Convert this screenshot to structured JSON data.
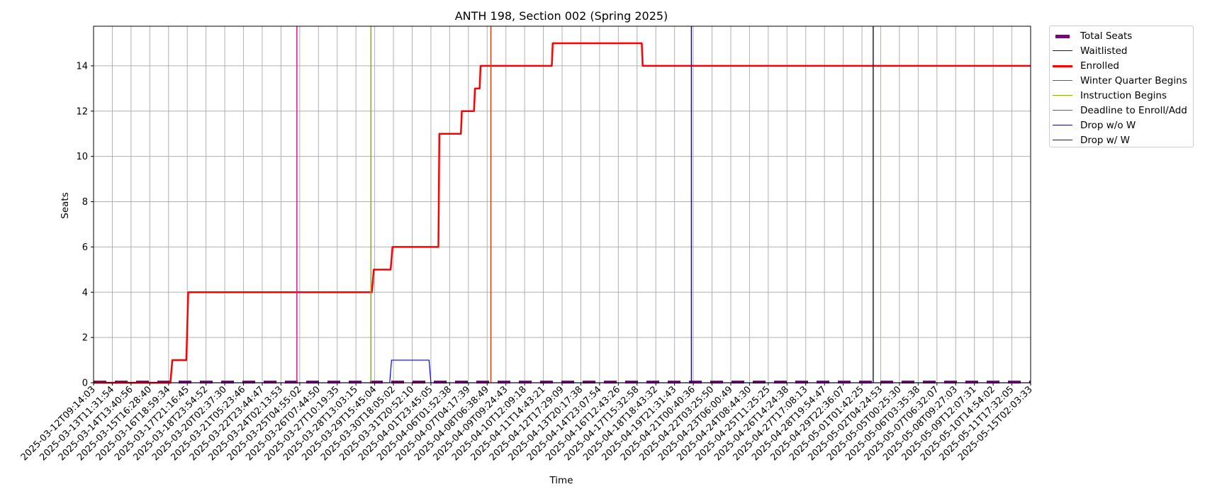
{
  "chart_data": {
    "type": "line",
    "title": "ANTH 198, Section 002 (Spring 2025)",
    "xlabel": "Time",
    "ylabel": "Seats",
    "ylim": [
      0,
      15.75
    ],
    "yticks": [
      0,
      2,
      4,
      6,
      8,
      10,
      12,
      14
    ],
    "grid": true,
    "legend_placement": "outside-top-right",
    "x_tick_labels": [
      "2025-03-12T09:14:03",
      "2025-03-13T11:31:54",
      "2025-03-14T13:40:56",
      "2025-03-15T16:28:40",
      "2025-03-16T18:59:34",
      "2025-03-17T21:16:45",
      "2025-03-18T23:54:52",
      "2025-03-20T02:37:30",
      "2025-03-21T05:23:46",
      "2025-03-22T23:44:47",
      "2025-03-24T02:13:53",
      "2025-03-25T04:55:02",
      "2025-03-26T07:44:50",
      "2025-03-27T10:19:35",
      "2025-03-28T13:03:15",
      "2025-03-29T15:45:04",
      "2025-03-30T18:05:02",
      "2025-03-31T20:52:10",
      "2025-04-01T23:45:05",
      "2025-04-06T01:52:38",
      "2025-04-07T04:17:39",
      "2025-04-08T06:38:49",
      "2025-04-09T09:24:43",
      "2025-04-10T12:09:18",
      "2025-04-11T14:43:21",
      "2025-04-12T17:29:09",
      "2025-04-13T20:17:38",
      "2025-04-14T23:07:54",
      "2025-04-16T12:43:26",
      "2025-04-17T15:32:58",
      "2025-04-18T18:43:32",
      "2025-04-19T21:31:43",
      "2025-04-21T00:40:36",
      "2025-04-22T03:25:50",
      "2025-04-23T06:00:49",
      "2025-04-24T08:44:30",
      "2025-04-25T11:25:25",
      "2025-04-26T14:24:38",
      "2025-04-27T17:08:13",
      "2025-04-28T19:54:47",
      "2025-04-29T22:36:07",
      "2025-05-01T01:42:25",
      "2025-05-02T04:24:53",
      "2025-05-05T00:25:30",
      "2025-05-06T03:35:38",
      "2025-05-07T06:32:07",
      "2025-05-08T09:27:03",
      "2025-05-09T12:07:31",
      "2025-05-10T14:54:02",
      "2025-05-11T17:32:05",
      "2025-05-15T02:03:33"
    ],
    "series": [
      {
        "name": "Total Seats",
        "color": "#800080",
        "style": "dashed",
        "x": [
          0,
          50
        ],
        "y": [
          0,
          0
        ]
      },
      {
        "name": "Waitlisted",
        "color": "#0000ff",
        "style": "solid",
        "x": [
          0,
          15.8,
          15.9,
          17.9,
          18.0,
          21.0,
          21.1,
          50
        ],
        "y": [
          0,
          0,
          1,
          1,
          0,
          0,
          0,
          0
        ]
      },
      {
        "name": "Enrolled",
        "color": "#ff0000",
        "style": "solid",
        "x": [
          0,
          4.1,
          4.2,
          4.95,
          5.05,
          14.85,
          14.95,
          15.85,
          15.95,
          18.4,
          18.45,
          18.6,
          19.6,
          19.65,
          20.3,
          20.35,
          20.6,
          20.65,
          24.45,
          24.5,
          29.25,
          29.3,
          50
        ],
        "y": [
          0,
          0,
          1,
          1,
          4,
          4,
          5,
          5,
          6,
          6,
          11,
          11,
          11,
          12,
          12,
          13,
          13,
          14,
          14,
          15,
          15,
          14,
          14
        ]
      }
    ],
    "event_lines": [
      {
        "name": "Winter Quarter Begins",
        "color": "#e0109b",
        "x": 10.85
      },
      {
        "name": "Instruction Begins",
        "color": "#8ab000",
        "x": 14.8
      },
      {
        "name": "Deadline to Enroll/Add",
        "color": "#d04010",
        "x": 21.2
      },
      {
        "name": "Drop w/o W",
        "color": "#1a0ba0",
        "x": 31.9
      },
      {
        "name": "Drop w/ W",
        "color": "#1b2340",
        "x": 41.6
      }
    ],
    "legend": [
      {
        "label": "Total Seats",
        "color": "#800080",
        "kind": "thick"
      },
      {
        "label": "Waitlisted",
        "color": "#0000ff",
        "kind": "thin"
      },
      {
        "label": "Enrolled",
        "color": "#ff0000",
        "kind": "medium"
      },
      {
        "label": "Winter Quarter Begins",
        "color": "#e0109b",
        "kind": "thin"
      },
      {
        "label": "Instruction Begins",
        "color": "#8ab000",
        "kind": "thin"
      },
      {
        "label": "Deadline to Enroll/Add",
        "color": "#d04010",
        "kind": "thin"
      },
      {
        "label": "Drop w/o W",
        "color": "#1a0ba0",
        "kind": "thin"
      },
      {
        "label": "Drop w/ W",
        "color": "#1b2340",
        "kind": "thin"
      }
    ]
  }
}
